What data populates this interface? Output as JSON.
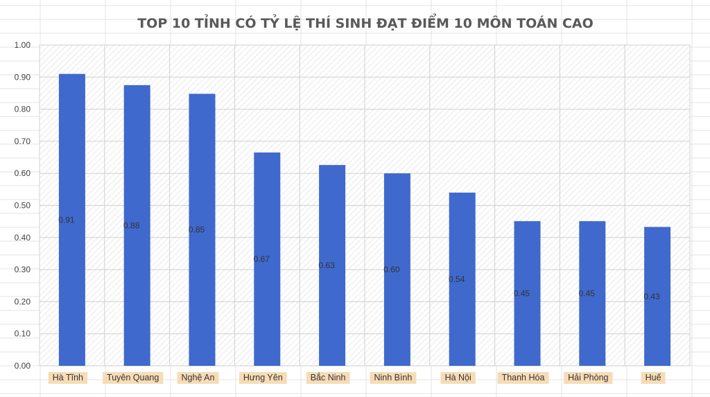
{
  "chart_data": {
    "type": "bar",
    "title": "TOP 10 TỈNH CÓ TỶ LỆ THÍ SINH ĐẠT ĐIỂM 10 MÔN TOÁN CAO",
    "xlabel": "",
    "ylabel": "",
    "categories": [
      "Hà Tĩnh",
      "Tuyên Quang",
      "Nghệ An",
      "Hưng Yên",
      "Bắc Ninh",
      "Ninh Bình",
      "Hà Nội",
      "Thanh Hóa",
      "Hải Phòng",
      "Huế"
    ],
    "values": [
      0.91,
      0.875,
      0.848,
      0.665,
      0.626,
      0.6,
      0.54,
      0.451,
      0.451,
      0.433
    ],
    "value_labels": [
      "0.91",
      "0.88",
      "0.85",
      "0.67",
      "0.63",
      "0.60",
      "0.54",
      "0.45",
      "0.45",
      "0.43"
    ],
    "ylim": [
      0,
      1
    ],
    "yticks": [
      "0.00",
      "0.10",
      "0.20",
      "0.30",
      "0.40",
      "0.50",
      "0.60",
      "0.70",
      "0.80",
      "0.90",
      "1.00"
    ],
    "grid": true,
    "legend": "none",
    "colors": {
      "bar": "#3f69cd",
      "category_label_bg": "#f6dcb6",
      "title": "#595959",
      "plot_hatch": "#d6d6d6",
      "gridline": "#cfcfcf",
      "sheet_grid": "#e3e3e3"
    }
  }
}
